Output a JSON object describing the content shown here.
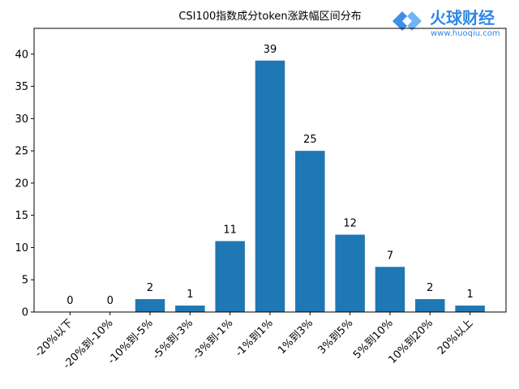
{
  "chart_data": {
    "type": "bar",
    "title": "CSI100指数成分token涨跌幅区间分布",
    "categories": [
      "-20%以下",
      "-20%到-10%",
      "-10%到-5%",
      "-5%到-3%",
      "-3%到-1%",
      "-1%到1%",
      "1%到3%",
      "3%到5%",
      "5%到10%",
      "10%到20%",
      "20%以上"
    ],
    "values": [
      0,
      0,
      2,
      1,
      11,
      39,
      25,
      12,
      7,
      2,
      1
    ],
    "color": "#1f77b4",
    "ylim": [
      0,
      44
    ],
    "yticks": [
      0,
      5,
      10,
      15,
      20,
      25,
      30,
      35,
      40
    ],
    "grid": false
  },
  "watermark": {
    "brand": "火球财经",
    "url": "www.huoqiu.com"
  }
}
